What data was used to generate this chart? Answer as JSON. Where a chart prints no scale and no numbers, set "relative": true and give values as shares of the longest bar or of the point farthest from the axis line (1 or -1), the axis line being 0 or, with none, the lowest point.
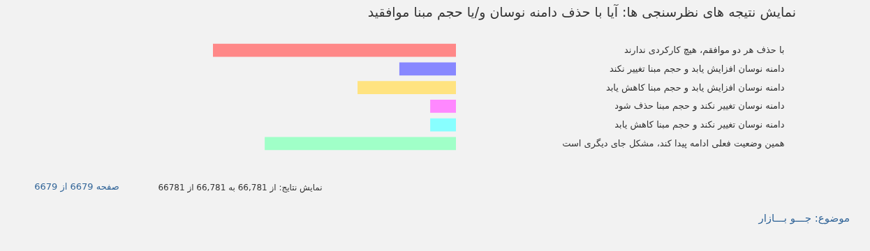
{
  "chart_data": {
    "type": "bar",
    "orientation": "horizontal",
    "relative": true,
    "title": "نمایش نتیجه های نظرسنجی ها: آیا با حذف دامنه نوسان و/یا حجم مبنا موافقید",
    "categories": [
      "با حذف هر دو موافقم، هیچ کارکردی ندارند",
      "دامنه نوسان افزایش یابد و حجم مبنا تغییر نکند",
      "دامنه نوسان افزایش یابد و حجم مبنا کاهش یابد",
      "دامنه نوسان تغییر نکند و حجم مبنا حذف شود",
      "دامنه نوسان تغییر نکند و حجم مبنا کاهش یابد",
      "همین وضعیت فعلی ادامه پیدا کند، مشکل جای دیگری است"
    ],
    "values": [
      1,
      0.233,
      0.405,
      0.106,
      0.106,
      0.787
    ],
    "colors": [
      "#ff8888",
      "#8888ff",
      "#ffe380",
      "#ff88ff",
      "#88ffff",
      "#a0ffc8"
    ],
    "annotations": [
      "صفحه 6679 از 6679",
      "نمایش نتایج: از 66,781 به 66,781 از 66781",
      "موضوع: جـــو بـــازار"
    ]
  }
}
